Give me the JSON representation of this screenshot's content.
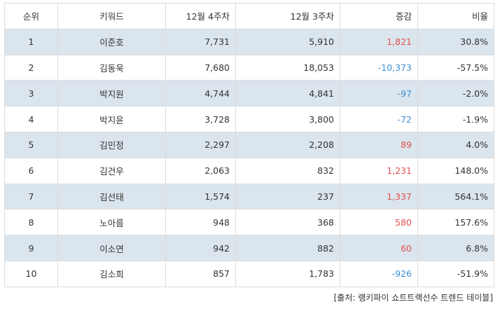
{
  "table": {
    "headers": {
      "rank": "순위",
      "keyword": "키워드",
      "week4": "12월 4주차",
      "week3": "12월 3주차",
      "change": "증감",
      "ratio": "비율"
    },
    "rows": [
      {
        "rank": "1",
        "keyword": "이준호",
        "week4": "7,731",
        "week3": "5,910",
        "change": "1,821",
        "ratio": "30.8%"
      },
      {
        "rank": "2",
        "keyword": "김동욱",
        "week4": "7,680",
        "week3": "18,053",
        "change": "-10,373",
        "ratio": "-57.5%"
      },
      {
        "rank": "3",
        "keyword": "박지원",
        "week4": "4,744",
        "week3": "4,841",
        "change": "-97",
        "ratio": "-2.0%"
      },
      {
        "rank": "4",
        "keyword": "박지윤",
        "week4": "3,728",
        "week3": "3,800",
        "change": "-72",
        "ratio": "-1.9%"
      },
      {
        "rank": "5",
        "keyword": "김민정",
        "week4": "2,297",
        "week3": "2,208",
        "change": "89",
        "ratio": "4.0%"
      },
      {
        "rank": "6",
        "keyword": "김건우",
        "week4": "2,063",
        "week3": "832",
        "change": "1,231",
        "ratio": "148.0%"
      },
      {
        "rank": "7",
        "keyword": "김선태",
        "week4": "1,574",
        "week3": "237",
        "change": "1,337",
        "ratio": "564.1%"
      },
      {
        "rank": "8",
        "keyword": "노아름",
        "week4": "948",
        "week3": "368",
        "change": "580",
        "ratio": "157.6%"
      },
      {
        "rank": "9",
        "keyword": "이소연",
        "week4": "942",
        "week3": "882",
        "change": "60",
        "ratio": "6.8%"
      },
      {
        "rank": "10",
        "keyword": "김소희",
        "week4": "857",
        "week3": "1,783",
        "change": "-926",
        "ratio": "-51.9%"
      }
    ]
  },
  "colors": {
    "positive": "#e05050",
    "negative": "#3e91d6",
    "stripe": "#dbe5ed"
  },
  "source": "[출처: 랭키파이 쇼트트랙선수 트렌드 테이블]"
}
